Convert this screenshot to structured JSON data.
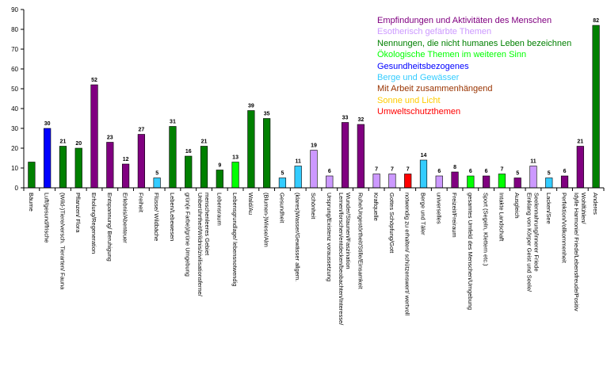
{
  "chart_data": {
    "type": "bar",
    "ylim": [
      0,
      90
    ],
    "yticks": [
      0,
      10,
      20,
      30,
      40,
      50,
      60,
      70,
      80,
      90
    ],
    "grid": false,
    "legend_position": "top-right",
    "legend": [
      {
        "label": "Empfindungen und Aktivitäten des Menschen",
        "color": "#800080"
      },
      {
        "label": "Esotherisch gefärbte Themen",
        "color": "#cc99ff"
      },
      {
        "label": "Nennungen, die nicht humanes Leben bezeichnen",
        "color": "#008000"
      },
      {
        "label": "Ökologische Themen im weiteren Sinn",
        "color": "#00ff00"
      },
      {
        "label": "Gesundheitsbezogenes",
        "color": "#0000ff"
      },
      {
        "label": "Berge und Gewässer",
        "color": "#33ccff"
      },
      {
        "label": "Mit Arbeit zusammenhängend",
        "color": "#993300"
      },
      {
        "label": "Sonne und Licht",
        "color": "#ffcc00"
      },
      {
        "label": "Umweltschutzthemen",
        "color": "#ff0000"
      }
    ],
    "categories": [
      "Bäume",
      "Luft/gesund/frische",
      "(Wild-)Tiere/versch. Tierarten/ Fauna",
      "Pflanzen/ Flora",
      "Erholung/Regeneration",
      "Entspannung/ Beruhigung",
      "Erlebnis/Abenteuer",
      "Freiheit",
      "Flüsse/ Wildbäche",
      "Leben/Lebewesen",
      "grün(e Farbe)/grüne Umgebung",
      "Unberührtheit/Wildnis/zivilisationsferne/menschenleeres Gebiet",
      "Lebensraum",
      "Lebensgrundlage/ lebensnotwendig",
      "Wald/Au",
      "(Blumen-)Wiese/Alm",
      "Gesundheit",
      "(klares)Wasser/Gewässer allgem.",
      "Schönheit",
      "Ursprung/Existenz voraussetzung",
      "Lernen/forschen/entdecken/beobachten/Interesse/Wunder/Staunen/Faszination",
      "Ruhe/Ungestörtheit/Stille/Einsamkeit",
      "Kraftquelle",
      "Gottes Schöpfung/Gott",
      "notwendig zu erhalten/ schützenswert/ wertvoll",
      "Berge und Täler",
      "universelles",
      "Freizeit/Freiraum",
      "gesamtes Umfeld des Menschen/Umgebung",
      "Sport (Segeln, Klettern etc.)",
      "Intakte Landschaft",
      "Ausgleich",
      "Einklang von Körper Geist und Seele/Seelennahrung/innerer Friede",
      "Lacken/See",
      "Perfektion/Vollkommenheit",
      "Idylle Harmonie/ Friede/Lebensfreude/Positiv Wohlfühlen/",
      "Anderes"
    ],
    "values": [
      13,
      30,
      21,
      20,
      52,
      23,
      12,
      27,
      5,
      31,
      16,
      21,
      9,
      13,
      39,
      35,
      5,
      11,
      19,
      6,
      33,
      32,
      7,
      7,
      7,
      14,
      6,
      8,
      6,
      6,
      7,
      5,
      11,
      5,
      6,
      21,
      82
    ],
    "data_labels": [
      "",
      "30",
      "21",
      "20",
      "52",
      "23",
      "12",
      "27",
      "5",
      "31",
      "16",
      "21",
      "9",
      "13",
      "39",
      "35",
      "5",
      "11",
      "19",
      "6",
      "33",
      "32",
      "7",
      "7",
      "7",
      "14",
      "6",
      "8",
      "6",
      "6",
      "7",
      "5",
      "11",
      "5",
      "6",
      "21",
      "82"
    ],
    "bar_colors": [
      "#008000",
      "#0000ff",
      "#008000",
      "#008000",
      "#800080",
      "#800080",
      "#800080",
      "#800080",
      "#33ccff",
      "#008000",
      "#008000",
      "#008000",
      "#008000",
      "#00ff00",
      "#008000",
      "#008000",
      "#33ccff",
      "#33ccff",
      "#cc99ff",
      "#cc99ff",
      "#800080",
      "#800080",
      "#cc99ff",
      "#cc99ff",
      "#ff0000",
      "#33ccff",
      "#cc99ff",
      "#800080",
      "#00ff00",
      "#800080",
      "#00ff00",
      "#800080",
      "#cc99ff",
      "#33ccff",
      "#800080",
      "#800080",
      "#008000"
    ]
  }
}
